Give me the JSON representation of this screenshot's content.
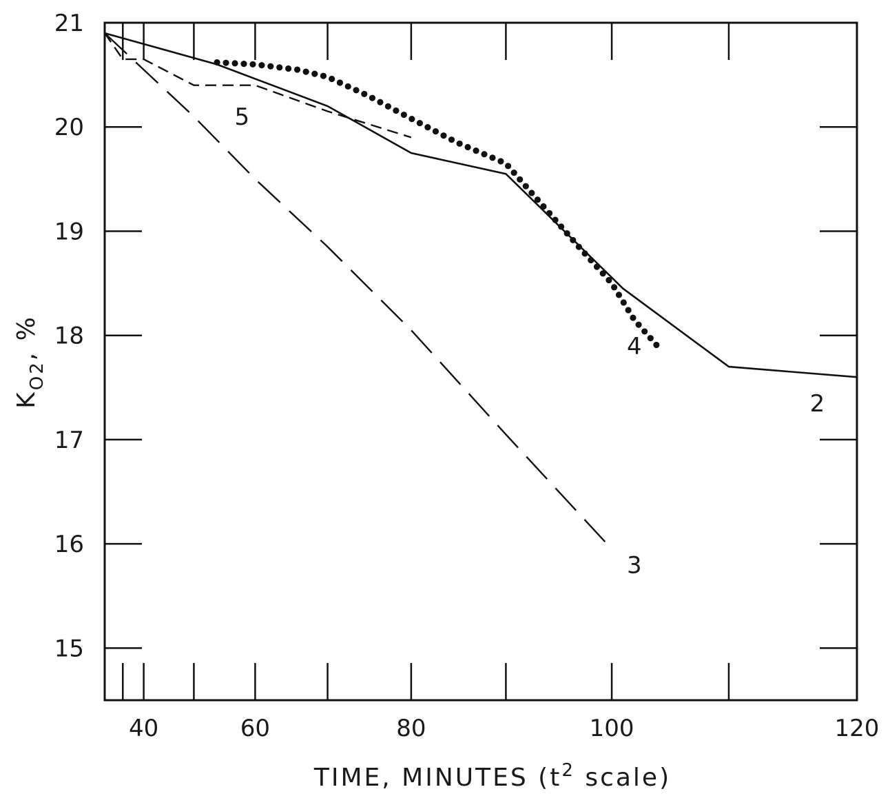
{
  "chart_data": {
    "type": "line",
    "xlabel_main": "TIME, MINUTES (t",
    "xlabel_sup": "2",
    "xlabel_tail": " scale)",
    "ylabel_main": "K",
    "ylabel_sub": "O2",
    "ylabel_unit": ", %",
    "x_scale": "t^2",
    "xlim": [
      30,
      120
    ],
    "ylim": [
      14.5,
      21
    ],
    "x_ticks": [
      40,
      60,
      80,
      100,
      120
    ],
    "x_tick_labels": [
      "40",
      "60",
      "80",
      "100",
      "120"
    ],
    "y_ticks": [
      15,
      16,
      17,
      18,
      19,
      20,
      21
    ],
    "y_tick_labels": [
      "15",
      "16",
      "17",
      "18",
      "19",
      "20",
      "21"
    ],
    "grid": false,
    "series": [
      {
        "name": "2",
        "style": "solid",
        "x": [
          30,
          54,
          70,
          80,
          90,
          101,
          110,
          120
        ],
        "y": [
          20.9,
          20.6,
          20.2,
          19.75,
          19.55,
          18.45,
          17.7,
          17.6
        ]
      },
      {
        "name": "3",
        "style": "long-dash",
        "x": [
          30,
          40,
          50,
          60,
          70,
          80,
          90,
          100
        ],
        "y": [
          20.9,
          20.55,
          20.1,
          19.5,
          18.85,
          18.05,
          17.05,
          15.95
        ]
      },
      {
        "name": "4",
        "style": "dotted",
        "x": [
          54,
          60,
          66,
          70,
          75,
          80,
          85,
          90,
          94,
          97,
          100,
          102,
          104
        ],
        "y": [
          20.62,
          20.6,
          20.55,
          20.48,
          20.3,
          20.08,
          19.85,
          19.65,
          19.2,
          18.85,
          18.5,
          18.15,
          17.9
        ]
      },
      {
        "name": "5",
        "style": "short-dash",
        "x": [
          30,
          35,
          40,
          50,
          60,
          70,
          80
        ],
        "y": [
          20.9,
          20.65,
          20.65,
          20.4,
          20.4,
          20.15,
          19.9
        ]
      }
    ],
    "curve_labels": [
      {
        "text": "2",
        "x": 117,
        "y": 17.35
      },
      {
        "text": "3",
        "x": 102,
        "y": 15.8
      },
      {
        "text": "4",
        "x": 102,
        "y": 17.9
      },
      {
        "text": "5",
        "x": 58,
        "y": 20.1
      }
    ],
    "minor_x_ticks": [
      35,
      50,
      70,
      90,
      110
    ]
  }
}
